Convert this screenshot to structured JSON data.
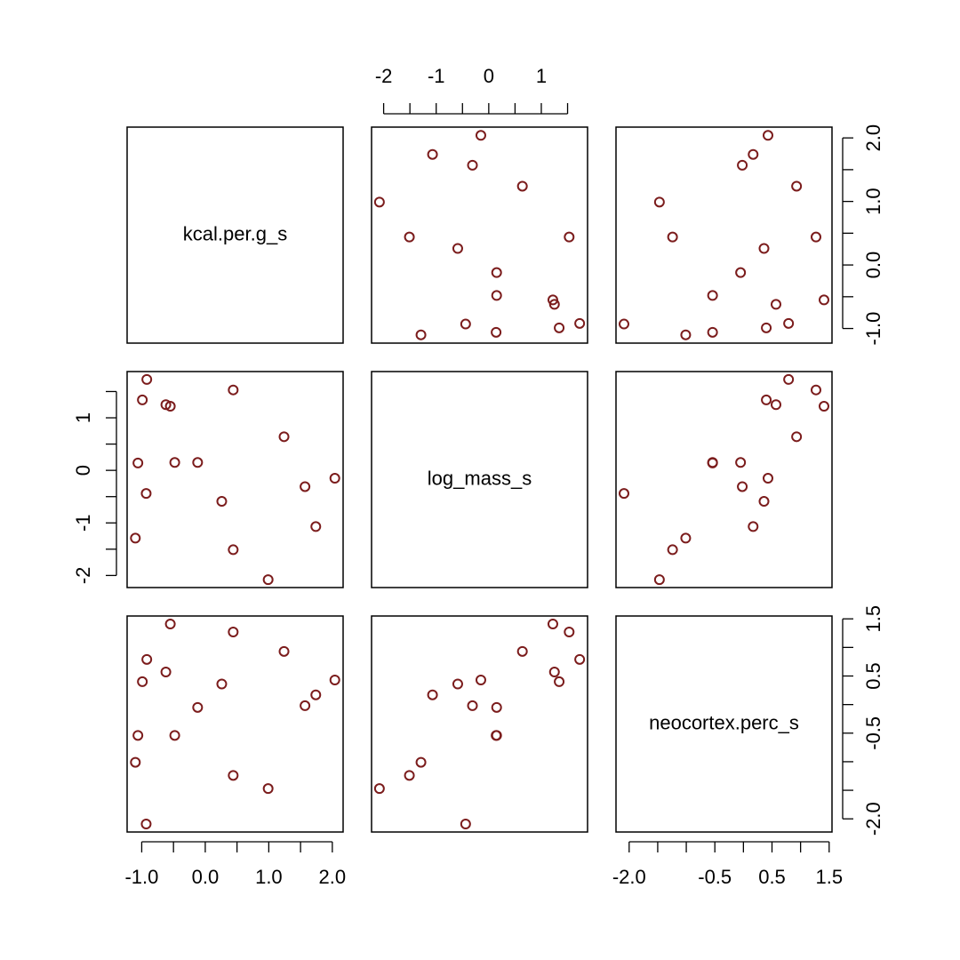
{
  "chart_data": {
    "type": "scatter_matrix",
    "color": "#7b1c1c",
    "variables": [
      {
        "name": "kcal.per.g_s",
        "values": [
          -0.92,
          -0.99,
          -0.62,
          -0.55,
          0.44,
          -1.06,
          -0.48,
          -0.12,
          -0.93,
          1.57,
          2.04,
          0.26,
          1.24,
          -1.1,
          0.44,
          1.74,
          0.99
        ],
        "lim": [
          -1.23,
          2.17
        ],
        "ticks": [
          {
            "value": -1,
            "label": "-1.0"
          },
          {
            "value": 0,
            "label": "0.0"
          },
          {
            "value": 1,
            "label": "1.0"
          },
          {
            "value": 2,
            "label": "2.0"
          }
        ],
        "minor_ticks": [
          -0.5,
          0.5,
          1.5
        ]
      },
      {
        "name": "log_mass_s",
        "values": [
          1.73,
          1.34,
          1.25,
          1.22,
          1.53,
          0.14,
          0.15,
          0.15,
          -0.44,
          -0.31,
          -0.15,
          -0.59,
          0.64,
          -1.29,
          -1.51,
          -1.07,
          -2.08
        ],
        "lim": [
          -2.23,
          1.88
        ],
        "ticks": [
          -2,
          -1,
          0,
          1
        ],
        "minor_ticks": [
          -1.5,
          -0.5,
          0.5,
          1.5
        ]
      },
      {
        "name": "neocortex.perc_s",
        "values": [
          0.79,
          0.4,
          0.57,
          1.41,
          1.27,
          -0.54,
          -0.54,
          -0.05,
          -2.09,
          -0.02,
          0.43,
          0.36,
          0.93,
          -1.01,
          -1.24,
          0.17,
          -1.47
        ],
        "lim": [
          -2.23,
          1.55
        ],
        "ticks": [
          {
            "value": -2,
            "label": "-2.0"
          },
          -0.5,
          0.5,
          1.5
        ],
        "minor_ticks": [
          -1.5,
          -1.0,
          0.0,
          1.0
        ]
      }
    ]
  }
}
